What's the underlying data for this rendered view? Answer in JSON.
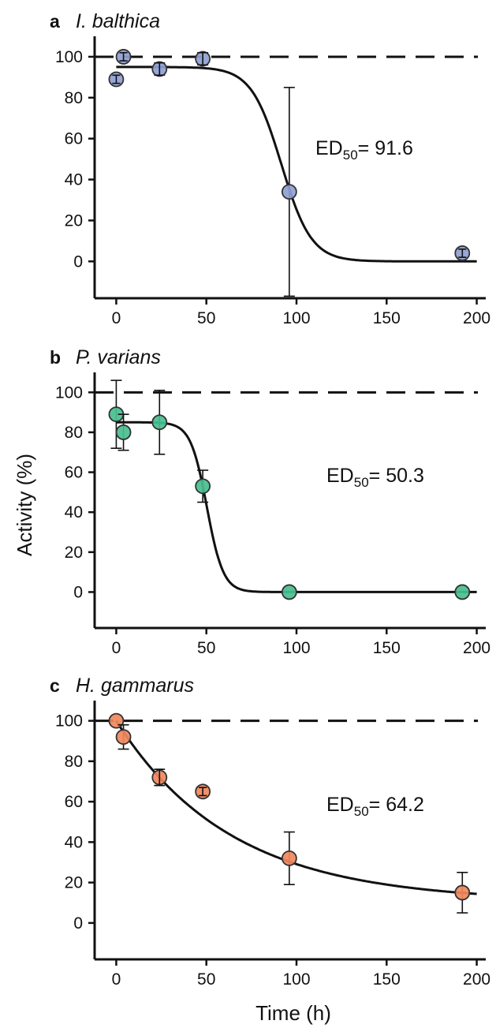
{
  "ylabel": "Activity (%)",
  "xlabel": "Time (h)",
  "colors": {
    "blue": "#8f9fd3",
    "green": "#48bf8f",
    "orange": "#f0875c",
    "axis": "#111111"
  },
  "chart_data": [
    {
      "type": "scatter",
      "panel_letter": "a",
      "title": "I. balthica",
      "ed50_label": "ED",
      "ed50_sub": "50",
      "ed50_value": "= 91.6",
      "color": "#8f9fd3",
      "x": [
        0,
        4,
        24,
        48,
        96,
        192
      ],
      "y": [
        89,
        100,
        94,
        99,
        34,
        4
      ],
      "err": [
        2,
        2,
        3,
        3,
        51,
        2
      ],
      "fit": {
        "model": "sigmoid",
        "top": 95,
        "bottom": 0,
        "ed50": 91.6,
        "slope": 0.12
      },
      "reference_line": 100,
      "xticks": [
        0,
        50,
        100,
        150,
        200
      ],
      "yticks": [
        0,
        20,
        40,
        60,
        80,
        100
      ],
      "xlim": [
        -12,
        205
      ],
      "ylim": [
        -18,
        110
      ]
    },
    {
      "type": "scatter",
      "panel_letter": "b",
      "title": "P. varians",
      "ed50_label": "ED",
      "ed50_sub": "50",
      "ed50_value": "= 50.3",
      "color": "#48bf8f",
      "x": [
        0,
        4,
        24,
        48,
        96,
        192
      ],
      "y": [
        89,
        80,
        85,
        53,
        0,
        0
      ],
      "err": [
        17,
        9,
        16,
        8,
        0,
        0
      ],
      "fit": {
        "model": "sigmoid",
        "top": 85,
        "bottom": 0,
        "ed50": 50.3,
        "slope": 0.22
      },
      "reference_line": 100,
      "xticks": [
        0,
        50,
        100,
        150,
        200
      ],
      "yticks": [
        0,
        20,
        40,
        60,
        80,
        100
      ],
      "xlim": [
        -12,
        205
      ],
      "ylim": [
        -18,
        110
      ]
    },
    {
      "type": "scatter",
      "panel_letter": "c",
      "title": "H. gammarus",
      "ed50_label": "ED",
      "ed50_sub": "50",
      "ed50_value": "= 64.2",
      "color": "#f0875c",
      "x": [
        0,
        4,
        24,
        48,
        96,
        192
      ],
      "y": [
        100,
        92,
        72,
        65,
        32,
        15
      ],
      "err": [
        0,
        6,
        4,
        2,
        13,
        10
      ],
      "fit": {
        "model": "exponential",
        "top": 100,
        "bottom": 10.5,
        "k": 0.0157
      },
      "reference_line": 100,
      "xticks": [
        0,
        50,
        100,
        150,
        200
      ],
      "yticks": [
        0,
        20,
        40,
        60,
        80,
        100
      ],
      "xlim": [
        -12,
        205
      ],
      "ylim": [
        -18,
        110
      ]
    }
  ]
}
